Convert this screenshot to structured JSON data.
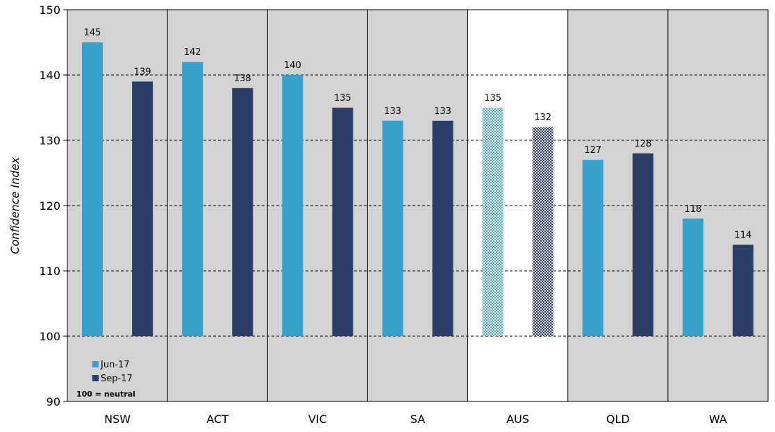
{
  "chart_data": {
    "type": "bar",
    "categories": [
      "NSW",
      "ACT",
      "VIC",
      "SA",
      "AUS",
      "QLD",
      "WA"
    ],
    "series": [
      {
        "name": "Jun-17",
        "values": [
          145,
          142,
          140,
          133,
          135,
          127,
          118
        ],
        "color": "#35A2CB"
      },
      {
        "name": "Sep-17",
        "values": [
          139,
          138,
          135,
          133,
          132,
          128,
          114
        ],
        "color": "#2C3E68"
      }
    ],
    "data_labels": [
      [
        "145",
        "139"
      ],
      [
        "142",
        "138"
      ],
      [
        "140",
        "135"
      ],
      [
        "133",
        "133"
      ],
      [
        "135",
        "132"
      ],
      [
        "127",
        "128"
      ],
      [
        "118",
        "114"
      ]
    ],
    "title": "",
    "xlabel": "",
    "ylabel": "Confidence Index",
    "ylim": [
      90,
      150
    ],
    "yticks": [
      "90",
      "100",
      "110",
      "120",
      "130",
      "140",
      "150"
    ],
    "baseline": 100,
    "highlight_category": "AUS",
    "grid": "dashed horizontal",
    "panel_color": "#D3D3D3",
    "highlight_panel_color": "#FFFFFF",
    "legend": {
      "position": "bottom-left",
      "entries": [
        "Jun-17",
        "Sep-17"
      ]
    },
    "note": "100 = neutral"
  }
}
